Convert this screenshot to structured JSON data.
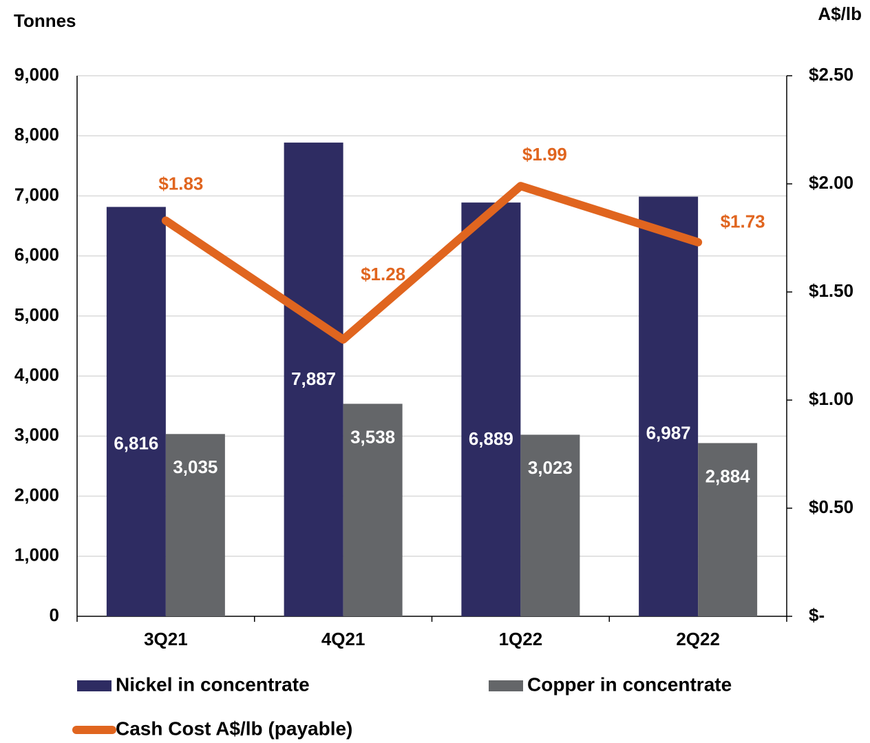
{
  "chart_data": {
    "type": "bar",
    "y_label": "Tonnes",
    "y2_label": "A$/lb",
    "categories": [
      "3Q21",
      "4Q21",
      "1Q22",
      "2Q22"
    ],
    "series": [
      {
        "name": "Nickel in concentrate",
        "color": "#2e2c62",
        "type": "bar",
        "values": [
          6816,
          7887,
          6889,
          6987
        ],
        "value_labels": [
          "6,816",
          "7,887",
          "6,889",
          "6,987"
        ]
      },
      {
        "name": "Copper in concentrate",
        "color": "#646669",
        "type": "bar",
        "values": [
          3035,
          3538,
          3023,
          2884
        ],
        "value_labels": [
          "3,035",
          "3,538",
          "3,023",
          "2,884"
        ]
      },
      {
        "name": "Cash Cost A$/lb (payable)",
        "color": "#e0651f",
        "type": "line",
        "axis": "y2",
        "values": [
          1.83,
          1.28,
          1.99,
          1.73
        ],
        "value_labels": [
          "$1.83",
          "$1.28",
          "$1.99",
          "$1.73"
        ]
      }
    ],
    "ylim": [
      0,
      9000
    ],
    "yticks": [
      0,
      {
        "value": 1000,
        "label": "1,000"
      },
      {
        "value": 2000,
        "label": "2,000"
      },
      {
        "value": 3000,
        "label": "3,000"
      },
      {
        "value": 4000,
        "label": "4,000"
      },
      {
        "value": 5000,
        "label": "5,000"
      },
      {
        "value": 6000,
        "label": "6,000"
      },
      {
        "value": 7000,
        "label": "7,000"
      },
      {
        "value": 8000,
        "label": "8,000"
      },
      {
        "value": 9000,
        "label": "9,000"
      }
    ],
    "y2lim": [
      0,
      2.5
    ],
    "y2ticks": [
      {
        "value": 0,
        "label": "$-"
      },
      {
        "value": 0.5,
        "label": "$0.50"
      },
      {
        "value": 1,
        "label": "$1.00"
      },
      {
        "value": 1.5,
        "label": "$1.50"
      },
      {
        "value": 2,
        "label": "$2.00"
      },
      {
        "value": 2.5,
        "label": "$2.50"
      }
    ],
    "grid": true
  }
}
